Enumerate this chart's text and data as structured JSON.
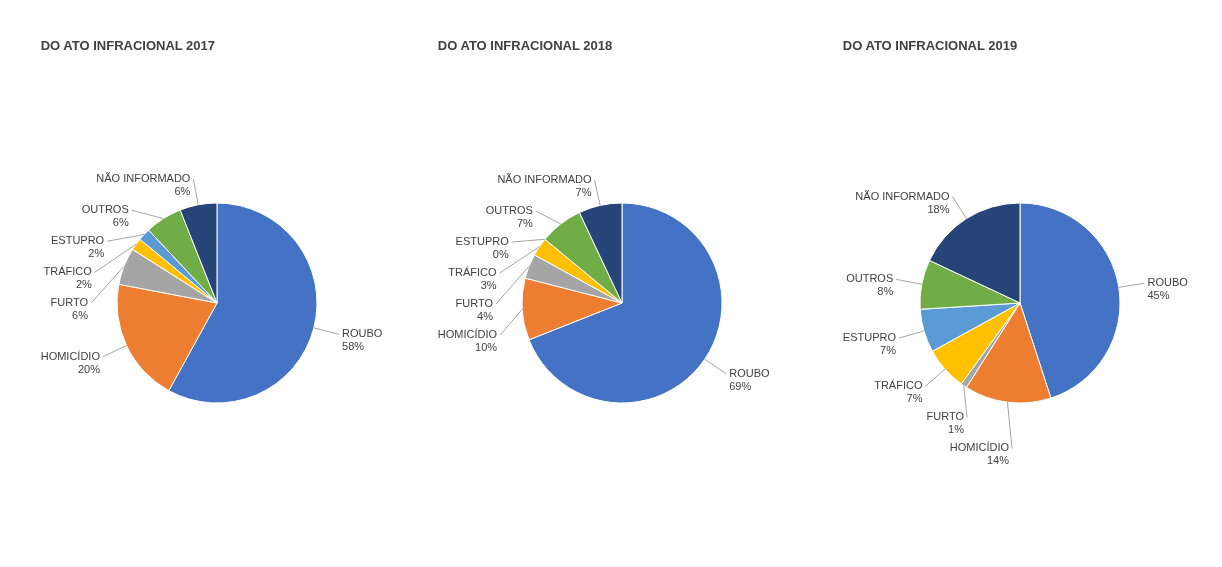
{
  "chart_data": [
    {
      "type": "pie",
      "title": "DO ATO INFRACIONAL 2017",
      "categories": [
        "ROUBO",
        "HOMICÍDIO",
        "FURTO",
        "TRÁFICO",
        "ESTUPRO",
        "OUTROS",
        "NÃO INFORMADO"
      ],
      "values": [
        58,
        20,
        6,
        2,
        2,
        6,
        6
      ],
      "value_labels": [
        "58%",
        "20%",
        "6%",
        "2%",
        "2%",
        "6%",
        "6%"
      ],
      "colors": [
        "#4472c4",
        "#ed7d31",
        "#a5a5a5",
        "#ffc000",
        "#5b9bd5",
        "#70ad47",
        "#264478"
      ]
    },
    {
      "type": "pie",
      "title": "DO ATO INFRACIONAL 2018",
      "categories": [
        "ROUBO",
        "HOMICÍDIO",
        "FURTO",
        "TRÁFICO",
        "ESTUPRO",
        "OUTROS",
        "NÃO INFORMADO"
      ],
      "values": [
        69,
        10,
        4,
        3,
        0,
        7,
        7
      ],
      "value_labels": [
        "69%",
        "10%",
        "4%",
        "3%",
        "0%",
        "7%",
        "7%"
      ],
      "colors": [
        "#4472c4",
        "#ed7d31",
        "#a5a5a5",
        "#ffc000",
        "#5b9bd5",
        "#70ad47",
        "#264478"
      ]
    },
    {
      "type": "pie",
      "title": "DO ATO INFRACIONAL 2019",
      "categories": [
        "ROUBO",
        "HOMICÍDIO",
        "FURTO",
        "TRÁFICO",
        "ESTUPRO",
        "OUTROS",
        "NÃO INFORMADO"
      ],
      "values": [
        45,
        14,
        1,
        7,
        7,
        8,
        18
      ],
      "value_labels": [
        "45%",
        "14%",
        "1%",
        "7%",
        "7%",
        "8%",
        "18%"
      ],
      "colors": [
        "#4472c4",
        "#ed7d31",
        "#a5a5a5",
        "#ffc000",
        "#5b9bd5",
        "#70ad47",
        "#264478"
      ]
    }
  ]
}
